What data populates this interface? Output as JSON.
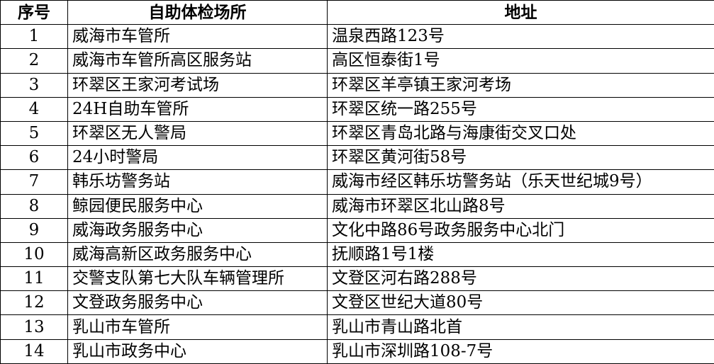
{
  "table": {
    "headers": [
      "序号",
      "自助体检场所",
      "地址"
    ],
    "rows": [
      [
        "1",
        "威海市车管所",
        "温泉西路123号"
      ],
      [
        "2",
        "威海市车管所高区服务站",
        "高区恒泰街1号"
      ],
      [
        "3",
        "环翠区王家河考试场",
        "环翠区羊亭镇王家河考场"
      ],
      [
        "4",
        "24H自助车管所",
        "环翠区统一路255号"
      ],
      [
        "5",
        "环翠区无人警局",
        "环翠区青岛北路与海康街交叉口处"
      ],
      [
        "6",
        "24小时警局",
        "环翠区黄河街58号"
      ],
      [
        "7",
        "韩乐坊警务站",
        "威海市经区韩乐坊警务站（乐天世纪城9号）"
      ],
      [
        "8",
        "鲸园便民服务中心",
        "威海市环翠区北山路8号"
      ],
      [
        "9",
        "威海政务服务中心",
        "文化中路86号政务服务中心北门"
      ],
      [
        "10",
        "威海高新区政务服务中心",
        "抚顺路1号1楼"
      ],
      [
        "11",
        "交警支队第七大队车辆管理所",
        "文登区河右路288号"
      ],
      [
        "12",
        "文登政务服务中心",
        "文登区世纪大道80号"
      ],
      [
        "13",
        "乳山市车管所",
        "乳山市青山路北首"
      ],
      [
        "14",
        "乳山市政务中心",
        "乳山市深圳路108-7号"
      ]
    ]
  }
}
